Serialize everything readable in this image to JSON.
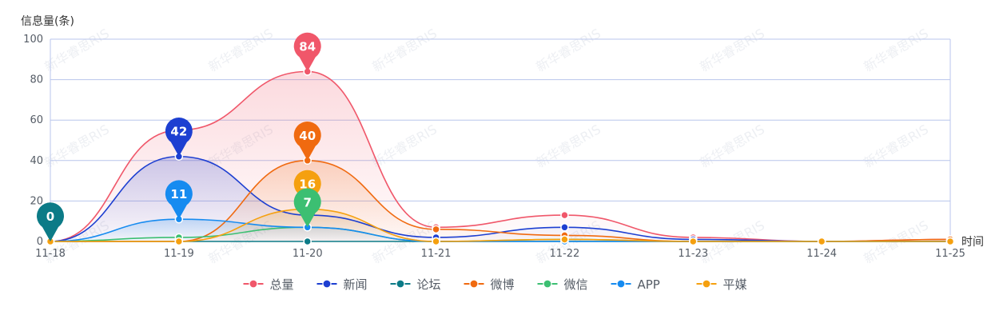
{
  "chart_data": {
    "type": "line",
    "ylabel": "信息量(条)",
    "xlabel": "时间",
    "categories": [
      "11-18",
      "11-19",
      "11-20",
      "11-21",
      "11-22",
      "11-23",
      "11-24",
      "11-25"
    ],
    "ylim": [
      0,
      100
    ],
    "yticks": [
      0,
      20,
      40,
      60,
      80,
      100
    ],
    "grid": true,
    "legend_position": "bottom",
    "watermark": "新华睿思RIS",
    "series": [
      {
        "name": "总量",
        "color": "#f0576a",
        "area": true,
        "values": [
          0,
          55,
          84,
          7,
          13,
          2,
          0,
          1
        ]
      },
      {
        "name": "新闻",
        "color": "#1d3fd1",
        "area": true,
        "values": [
          0,
          42,
          13,
          2,
          7,
          1,
          0,
          0
        ]
      },
      {
        "name": "论坛",
        "color": "#0c7b87",
        "area": false,
        "values": [
          0,
          0,
          0,
          0,
          0,
          0,
          0,
          0
        ]
      },
      {
        "name": "微博",
        "color": "#f06a10",
        "area": true,
        "values": [
          0,
          0,
          40,
          6,
          3,
          0,
          0,
          1
        ]
      },
      {
        "name": "微信",
        "color": "#3cbf72",
        "area": false,
        "values": [
          0,
          2,
          7,
          0,
          1,
          0,
          0,
          0
        ]
      },
      {
        "name": "APP",
        "color": "#168bf0",
        "area": true,
        "values": [
          0,
          11,
          7,
          0,
          0,
          0,
          0,
          0
        ]
      },
      {
        "name": "平媒",
        "color": "#f5a00f",
        "area": true,
        "values": [
          0,
          0,
          16,
          0,
          1,
          0,
          0,
          0
        ]
      }
    ],
    "annotations": [
      {
        "series": "论坛",
        "category": "11-18",
        "label": "0"
      },
      {
        "series": "新闻",
        "category": "11-19",
        "label": "42"
      },
      {
        "series": "APP",
        "category": "11-19",
        "label": "11"
      },
      {
        "series": "总量",
        "category": "11-20",
        "label": "84"
      },
      {
        "series": "微博",
        "category": "11-20",
        "label": "40"
      },
      {
        "series": "平媒",
        "category": "11-20",
        "label": "16"
      },
      {
        "series": "微信",
        "category": "11-20",
        "label": "7"
      }
    ]
  }
}
